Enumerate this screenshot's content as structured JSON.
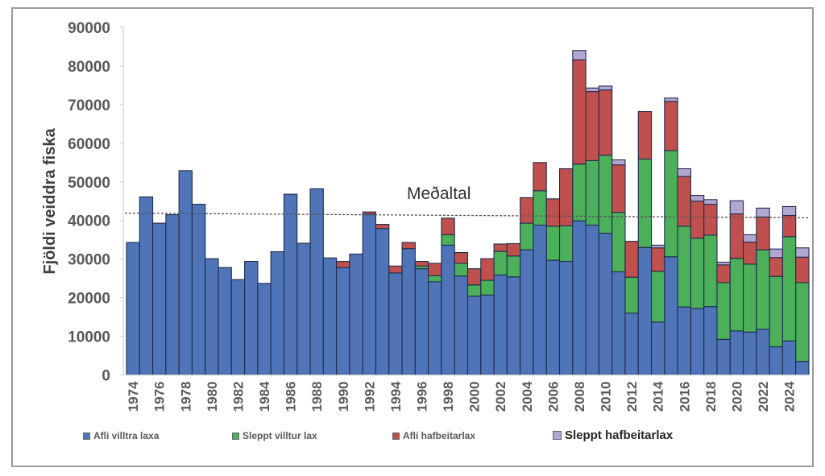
{
  "chart_data": {
    "type": "bar",
    "stacked": true,
    "title": "",
    "xlabel": "",
    "ylabel": "Fjöldi veiddra fiska",
    "ylim": [
      0,
      90000
    ],
    "yticks": [
      0,
      10000,
      20000,
      30000,
      40000,
      50000,
      60000,
      70000,
      80000,
      90000
    ],
    "ytick_labels": [
      "0",
      "10000",
      "20000",
      "30000",
      "40000",
      "50000",
      "60000",
      "70000",
      "80000",
      "90000"
    ],
    "grid": false,
    "legend_position": "bottom",
    "categories": [
      1974,
      1975,
      1976,
      1977,
      1978,
      1979,
      1980,
      1981,
      1982,
      1983,
      1984,
      1985,
      1986,
      1987,
      1988,
      1989,
      1990,
      1991,
      1992,
      1993,
      1994,
      1995,
      1996,
      1997,
      1998,
      1999,
      2000,
      2001,
      2002,
      2003,
      2004,
      2005,
      2006,
      2007,
      2008,
      2009,
      2010,
      2011,
      2012,
      2013,
      2014,
      2015,
      2016,
      2017,
      2018,
      2019,
      2020,
      2021,
      2022,
      2023,
      2024,
      2025
    ],
    "xtick_labels": [
      "1974",
      "1976",
      "1978",
      "1980",
      "1982",
      "1984",
      "1986",
      "1988",
      "1990",
      "1992",
      "1994",
      "1996",
      "1998",
      "2000",
      "2002",
      "2004",
      "2006",
      "2008",
      "2010",
      "2012",
      "2014",
      "2016",
      "2018",
      "2020",
      "2022",
      "2024"
    ],
    "series": [
      {
        "name": "Afli villtra laxa",
        "color": "#4f74b8",
        "values": [
          34300,
          46100,
          39300,
          41500,
          52900,
          44200,
          30100,
          27800,
          24700,
          29400,
          23700,
          31900,
          46800,
          34100,
          48200,
          30300,
          27800,
          31300,
          41600,
          37900,
          26400,
          32700,
          27500,
          24100,
          33600,
          25600,
          20400,
          20700,
          25900,
          25400,
          32400,
          38800,
          29700,
          29400,
          39900,
          38800,
          36700,
          26700,
          16000,
          33000,
          13700,
          30600,
          17600,
          17200,
          17700,
          9200,
          11400,
          11100,
          11800,
          7300,
          8800,
          3500
        ]
      },
      {
        "name": "Sleppt villtur lax",
        "color": "#4caf5a",
        "values": [
          0,
          0,
          0,
          0,
          0,
          0,
          0,
          0,
          0,
          0,
          0,
          0,
          0,
          0,
          0,
          0,
          0,
          0,
          0,
          0,
          0,
          0,
          700,
          1600,
          2700,
          3300,
          2900,
          3800,
          6100,
          5400,
          6900,
          8900,
          8800,
          9200,
          14700,
          16700,
          20200,
          15400,
          9300,
          22900,
          13100,
          27500,
          20900,
          18200,
          18500,
          14700,
          18800,
          17600,
          20600,
          18200,
          27000,
          20400
        ]
      },
      {
        "name": "Afli hafbeitarlax",
        "color": "#c0504d",
        "values": [
          0,
          0,
          0,
          0,
          0,
          0,
          0,
          0,
          0,
          0,
          0,
          0,
          0,
          0,
          0,
          0,
          1600,
          0,
          600,
          1100,
          1800,
          1600,
          1200,
          3200,
          4300,
          2800,
          4200,
          5600,
          1900,
          3200,
          6600,
          7300,
          7100,
          14800,
          27000,
          17900,
          16900,
          12300,
          9300,
          12300,
          6100,
          12700,
          12900,
          9600,
          8000,
          4600,
          11500,
          5700,
          8500,
          4900,
          5500,
          6600
        ]
      },
      {
        "name": "Sleppt hafbeitarlax",
        "color": "#b3a6d1",
        "values": [
          0,
          0,
          0,
          0,
          0,
          0,
          0,
          0,
          0,
          0,
          0,
          0,
          0,
          0,
          0,
          0,
          0,
          0,
          0,
          0,
          0,
          0,
          0,
          0,
          0,
          0,
          0,
          0,
          0,
          0,
          0,
          0,
          0,
          0,
          2400,
          900,
          1000,
          1300,
          0,
          0,
          700,
          900,
          2000,
          1500,
          1200,
          700,
          3400,
          1900,
          2300,
          2200,
          2300,
          2400
        ]
      }
    ],
    "annotations": [
      {
        "type": "hline",
        "style": "dashed",
        "label": "Meðaltal",
        "y_start": 41900,
        "y_end": 40700
      }
    ]
  }
}
